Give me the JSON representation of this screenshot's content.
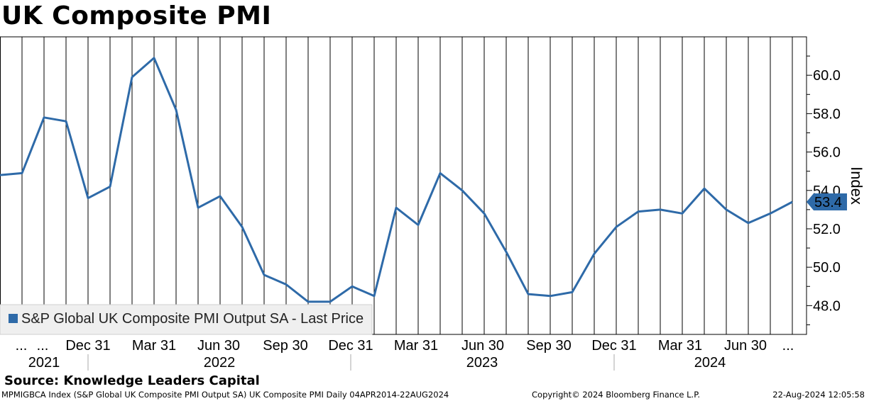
{
  "title": "UK Composite PMI",
  "source": "Source: Knowledge Leaders Capital",
  "footer": {
    "left": "MPMIGBCA Index (S&P Global UK Composite PMI Output SA) UK Composite PMI  Daily 04APR2014-22AUG2024",
    "mid": "Copyright© 2024 Bloomberg Finance L.P.",
    "right": "22-Aug-2024 12:05:58"
  },
  "colors": {
    "line": "#2e6aa8",
    "grid": "#000000",
    "legend_bg": "#efefef",
    "label_bg": "#2e6aa8"
  },
  "chart_data": {
    "type": "line",
    "title": "UK Composite PMI",
    "ylabel": "Index",
    "ylim": [
      46.5,
      62.0
    ],
    "yticks": [
      "48.0",
      "50.0",
      "52.0",
      "54.0",
      "56.0",
      "58.0",
      "60.0"
    ],
    "xtick_labels": [
      "...",
      "...",
      "Dec 31",
      "Mar 31",
      "Jun 30",
      "Sep 30",
      "Dec 31",
      "Mar 31",
      "Jun 30",
      "Sep 30",
      "Dec 31",
      "Mar 31",
      "Jun 30",
      "..."
    ],
    "years": [
      "2021",
      "2022",
      "2023",
      "2024"
    ],
    "grid": true,
    "legend_placement": "bottom-left",
    "last_value_label": "53.4",
    "series": [
      {
        "name": "S&P Global UK Composite PMI Output SA - Last Price",
        "x": [
          "2021-08-31",
          "2021-09-30",
          "2021-10-31",
          "2021-11-30",
          "2021-12-31",
          "2022-01-31",
          "2022-02-28",
          "2022-03-31",
          "2022-04-30",
          "2022-05-31",
          "2022-06-30",
          "2022-07-31",
          "2022-08-31",
          "2022-09-30",
          "2022-10-31",
          "2022-11-30",
          "2022-12-31",
          "2023-01-31",
          "2023-02-28",
          "2023-03-31",
          "2023-04-30",
          "2023-05-31",
          "2023-06-30",
          "2023-07-31",
          "2023-08-31",
          "2023-09-30",
          "2023-10-31",
          "2023-11-30",
          "2023-12-31",
          "2024-01-31",
          "2024-02-29",
          "2024-03-31",
          "2024-04-30",
          "2024-05-31",
          "2024-06-30",
          "2024-07-31",
          "2024-08-31"
        ],
        "values": [
          54.8,
          54.9,
          57.8,
          57.6,
          53.6,
          54.2,
          59.9,
          60.9,
          58.2,
          53.1,
          53.7,
          52.1,
          49.6,
          49.1,
          48.2,
          48.2,
          49.0,
          48.5,
          53.1,
          52.2,
          54.9,
          54.0,
          52.8,
          50.8,
          48.6,
          48.5,
          48.7,
          50.7,
          52.1,
          52.9,
          53.0,
          52.8,
          54.1,
          53.0,
          52.3,
          52.8,
          53.4
        ]
      }
    ]
  }
}
